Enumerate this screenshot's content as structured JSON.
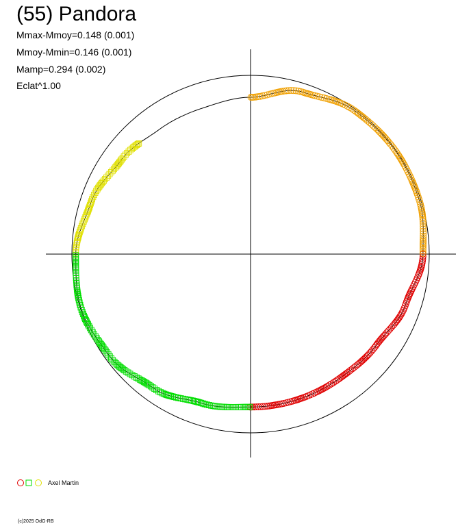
{
  "title": "(55) Pandora",
  "stats": [
    "Mmax-Mmoy=0.148 (0.001)",
    "Mmoy-Mmin=0.146 (0.001)",
    "Mamp=0.294 (0.002)",
    "Eclat^1.00"
  ],
  "legend": {
    "observer": "Axel Martin"
  },
  "credit": "(c)2025 OdG-RB",
  "colors": {
    "segment_1": "#e00000",
    "segment_2": "#f0a000",
    "segment_3": "#e0e000",
    "segment_4": "#00dd00",
    "axes": "#000000",
    "fit_curve": "#000000",
    "reference_circle": "#000000"
  },
  "chart_data": {
    "type": "scatter",
    "projection": "polar light curve (phase as angle, brightness as radius)",
    "reference_circle": true,
    "axes": "crosshair through center",
    "markers": {
      "segment_1": "circle",
      "segment_2": "circle",
      "segment_3": "square",
      "segment_4": "square"
    },
    "fit_profile": {
      "phase": [
        0,
        0.05,
        0.1,
        0.15,
        0.2,
        0.25,
        0.3,
        0.35,
        0.4,
        0.45,
        0.5,
        0.55,
        0.6,
        0.65,
        0.7,
        0.75,
        0.8,
        0.85,
        0.9,
        0.95,
        1.0
      ],
      "relative_radius": [
        1.0,
        1.085,
        1.13,
        1.135,
        1.13,
        1.1,
        1.04,
        0.99,
        0.975,
        0.975,
        0.975,
        1.0,
        1.055,
        1.11,
        1.135,
        1.115,
        1.07,
        1.02,
        0.985,
        0.98,
        1.0
      ]
    },
    "segments": [
      {
        "marker": "circle",
        "phase_range": [
          0.25,
          0.5
        ]
      },
      {
        "marker": "circle",
        "phase_range": [
          0.0,
          0.25
        ]
      },
      {
        "marker": "square",
        "phase_range": [
          0.75,
          0.875
        ]
      },
      {
        "marker": "square",
        "phase_range": [
          0.5,
          0.75
        ]
      }
    ]
  }
}
